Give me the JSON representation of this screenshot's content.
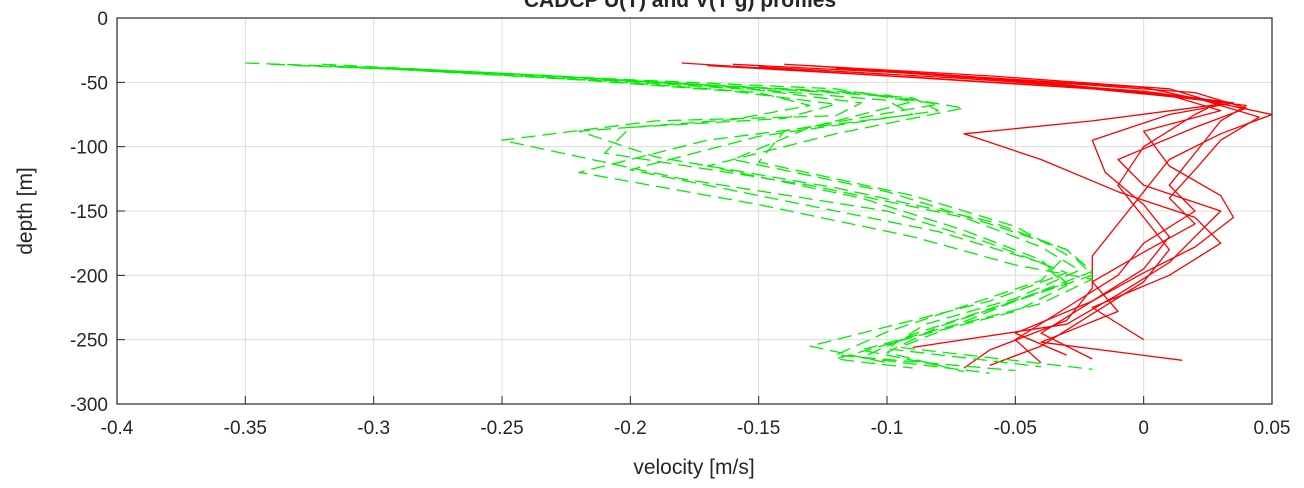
{
  "chart_data": {
    "type": "line",
    "title": "CADCP U(T) and V(T g) profiles",
    "xlabel": "velocity [m/s]",
    "ylabel": "depth [m]",
    "xlim": [
      -0.4,
      0.05
    ],
    "ylim": [
      -300,
      0
    ],
    "xticks": [
      -0.4,
      -0.35,
      -0.3,
      -0.25,
      -0.2,
      -0.15,
      -0.1,
      -0.05,
      0,
      0.05
    ],
    "yticks": [
      0,
      -50,
      -100,
      -150,
      -200,
      -250,
      -300
    ],
    "xtick_labels": [
      "-0.4",
      "-0.35",
      "-0.3",
      "-0.25",
      "-0.2",
      "-0.15",
      "-0.1",
      "-0.05",
      "0",
      "0.05"
    ],
    "ytick_labels": [
      "0",
      "-50",
      "-100",
      "-150",
      "-200",
      "-250",
      "-300"
    ],
    "grid": true,
    "colors": {
      "u": "#ff0000",
      "v": "#00ee00"
    },
    "series": [
      {
        "style": "solid",
        "color": "#ff0000",
        "x": [
          -0.18,
          -0.1,
          -0.02,
          0.03,
          0.02,
          0.0,
          -0.01,
          0.0,
          0.01,
          0.0,
          -0.02,
          -0.04,
          -0.06
        ],
        "y": [
          -35,
          -45,
          -55,
          -65,
          -75,
          -100,
          -130,
          -155,
          -180,
          -205,
          -230,
          -255,
          -270
        ]
      },
      {
        "style": "solid",
        "color": "#ff0000",
        "x": [
          -0.17,
          -0.09,
          -0.01,
          0.04,
          0.03,
          0.02,
          0.01,
          0.02,
          0.0,
          -0.01,
          -0.03,
          -0.05,
          -0.04
        ],
        "y": [
          -37,
          -46,
          -56,
          -68,
          -80,
          -105,
          -130,
          -150,
          -175,
          -200,
          -225,
          -250,
          -268
        ]
      },
      {
        "style": "solid",
        "color": "#ff0000",
        "x": [
          -0.16,
          -0.08,
          0.0,
          0.05,
          0.03,
          0.01,
          0.0,
          -0.01,
          -0.02,
          -0.02,
          -0.03,
          -0.06,
          -0.07
        ],
        "y": [
          -36,
          -44,
          -54,
          -75,
          -90,
          -110,
          -135,
          -160,
          -185,
          -210,
          -235,
          -258,
          -272
        ]
      },
      {
        "style": "solid",
        "color": "#ff0000",
        "x": [
          -0.15,
          -0.07,
          0.0,
          0.035,
          0.01,
          -0.02,
          -0.015,
          0.0,
          0.01,
          0.0,
          -0.02,
          -0.05,
          -0.03
        ],
        "y": [
          -38,
          -47,
          -57,
          -66,
          -75,
          -95,
          -120,
          -145,
          -170,
          -195,
          -220,
          -245,
          -262
        ]
      },
      {
        "style": "solid",
        "color": "#ff0000",
        "x": [
          -0.14,
          -0.06,
          0.01,
          0.03,
          -0.02,
          -0.07,
          -0.04,
          -0.01,
          0.02,
          0.03,
          0.01,
          -0.02,
          0.0
        ],
        "y": [
          -36,
          -45,
          -55,
          -67,
          -80,
          -90,
          -110,
          -135,
          -155,
          -175,
          -200,
          -225,
          -250
        ]
      },
      {
        "style": "solid",
        "color": "#ff0000",
        "x": [
          -0.13,
          -0.05,
          0.02,
          0.04,
          0.02,
          -0.01,
          0.0,
          0.03,
          0.02,
          0.01,
          -0.01,
          -0.03,
          -0.09
        ],
        "y": [
          -37,
          -48,
          -58,
          -70,
          -85,
          -110,
          -130,
          -150,
          -170,
          -190,
          -215,
          -238,
          -256
        ]
      },
      {
        "style": "solid",
        "color": "#ff0000",
        "x": [
          -0.12,
          -0.05,
          0.01,
          0.03,
          0.0,
          0.01,
          0.03,
          0.035,
          0.02,
          0.0,
          -0.02,
          -0.04,
          -0.02
        ],
        "y": [
          -39,
          -49,
          -60,
          -72,
          -88,
          -115,
          -138,
          -155,
          -178,
          -198,
          -220,
          -245,
          -265
        ]
      },
      {
        "style": "solid",
        "color": "#ff0000",
        "x": [
          -0.11,
          -0.04,
          0.02,
          0.045,
          0.03,
          0.02,
          0.01,
          0.02,
          0.0,
          -0.02,
          -0.01,
          -0.04,
          0.015
        ],
        "y": [
          -40,
          -50,
          -62,
          -77,
          -95,
          -118,
          -140,
          -160,
          -182,
          -205,
          -228,
          -252,
          -266
        ]
      },
      {
        "style": "dashed",
        "color": "#00ee00",
        "x": [
          -0.35,
          -0.28,
          -0.2,
          -0.12,
          -0.09,
          -0.13,
          -0.16,
          -0.1,
          -0.06,
          -0.03,
          -0.02,
          -0.05,
          -0.08,
          -0.1,
          -0.07
        ],
        "y": [
          -35,
          -40,
          -48,
          -55,
          -65,
          -85,
          -110,
          -135,
          -160,
          -180,
          -200,
          -220,
          -240,
          -260,
          -275
        ]
      },
      {
        "style": "dashed",
        "color": "#00ee00",
        "x": [
          -0.34,
          -0.26,
          -0.19,
          -0.11,
          -0.08,
          -0.14,
          -0.15,
          -0.09,
          -0.05,
          -0.03,
          -0.04,
          -0.07,
          -0.1,
          -0.12,
          -0.05
        ],
        "y": [
          -36,
          -42,
          -50,
          -58,
          -67,
          -88,
          -112,
          -138,
          -162,
          -184,
          -204,
          -224,
          -244,
          -262,
          -274
        ]
      },
      {
        "style": "dashed",
        "color": "#00ee00",
        "x": [
          -0.33,
          -0.25,
          -0.18,
          -0.1,
          -0.07,
          -0.12,
          -0.17,
          -0.11,
          -0.07,
          -0.04,
          -0.03,
          -0.06,
          -0.09,
          -0.11,
          -0.06
        ],
        "y": [
          -37,
          -43,
          -51,
          -60,
          -70,
          -90,
          -115,
          -140,
          -165,
          -188,
          -206,
          -226,
          -246,
          -264,
          -276
        ]
      },
      {
        "style": "dashed",
        "color": "#00ee00",
        "x": [
          -0.32,
          -0.24,
          -0.17,
          -0.09,
          -0.08,
          -0.15,
          -0.2,
          -0.14,
          -0.08,
          -0.04,
          -0.03,
          -0.05,
          -0.09,
          -0.12,
          -0.09
        ],
        "y": [
          -36,
          -44,
          -52,
          -62,
          -72,
          -92,
          -118,
          -142,
          -166,
          -190,
          -208,
          -228,
          -248,
          -265,
          -272
        ]
      },
      {
        "style": "dashed",
        "color": "#00ee00",
        "x": [
          -0.31,
          -0.23,
          -0.16,
          -0.1,
          -0.09,
          -0.17,
          -0.22,
          -0.15,
          -0.09,
          -0.05,
          -0.02,
          -0.04,
          -0.08,
          -0.11,
          -0.08
        ],
        "y": [
          -38,
          -45,
          -54,
          -64,
          -75,
          -95,
          -120,
          -145,
          -170,
          -192,
          -203,
          -222,
          -242,
          -258,
          -270
        ]
      },
      {
        "style": "dashed",
        "color": "#00ee00",
        "x": [
          -0.3,
          -0.22,
          -0.15,
          -0.11,
          -0.12,
          -0.19,
          -0.25,
          -0.18,
          -0.1,
          -0.06,
          -0.03,
          -0.06,
          -0.1,
          -0.13,
          -0.1
        ],
        "y": [
          -39,
          -47,
          -56,
          -66,
          -76,
          -80,
          -95,
          -125,
          -150,
          -175,
          -198,
          -220,
          -240,
          -255,
          -268
        ]
      },
      {
        "style": "dashed",
        "color": "#00ee00",
        "x": [
          -0.29,
          -0.22,
          -0.16,
          -0.12,
          -0.14,
          -0.2,
          -0.21,
          -0.13,
          -0.07,
          -0.04,
          -0.025,
          -0.05,
          -0.085,
          -0.1,
          -0.04
        ],
        "y": [
          -40,
          -48,
          -57,
          -67,
          -78,
          -85,
          -105,
          -130,
          -155,
          -178,
          -196,
          -218,
          -238,
          -257,
          -271
        ]
      },
      {
        "style": "dashed",
        "color": "#00ee00",
        "x": [
          -0.28,
          -0.21,
          -0.15,
          -0.13,
          -0.16,
          -0.22,
          -0.19,
          -0.12,
          -0.06,
          -0.03,
          -0.02,
          -0.045,
          -0.07,
          -0.095,
          -0.02
        ],
        "y": [
          -41,
          -49,
          -58,
          -68,
          -79,
          -88,
          -108,
          -132,
          -158,
          -180,
          -197,
          -216,
          -236,
          -256,
          -273
        ]
      }
    ]
  }
}
